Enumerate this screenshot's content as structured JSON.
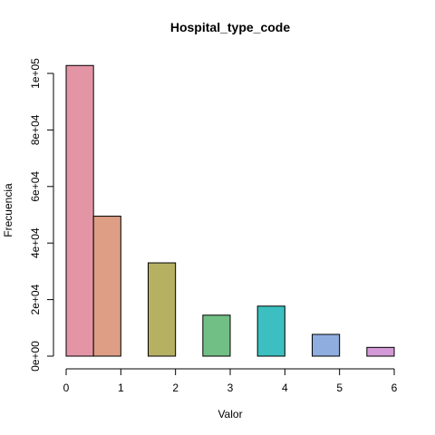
{
  "chart_data": {
    "type": "bar",
    "title": "Hospital_type_code",
    "xlabel": "Valor",
    "ylabel": "Frecuencia",
    "xlim": [
      0,
      6
    ],
    "ylim": [
      0,
      100000
    ],
    "x_ticks": [
      0,
      1,
      2,
      3,
      4,
      5,
      6
    ],
    "x_tick_labels": [
      "0",
      "1",
      "2",
      "3",
      "4",
      "5",
      "6"
    ],
    "y_ticks": [
      0,
      20000,
      40000,
      60000,
      80000,
      100000
    ],
    "y_tick_labels": [
      "0e+00",
      "2e+04",
      "4e+04",
      "6e+04",
      "8e+04",
      "1e+05"
    ],
    "grid": false,
    "bars": [
      {
        "x0": 0.0,
        "x1": 0.5,
        "value": 102800,
        "color": "#e495a5"
      },
      {
        "x0": 0.5,
        "x1": 1.0,
        "value": 49500,
        "color": "#dd9e85"
      },
      {
        "x0": 1.5,
        "x1": 2.0,
        "value": 33000,
        "color": "#b6b063"
      },
      {
        "x0": 2.5,
        "x1": 3.0,
        "value": 14500,
        "color": "#72bf85"
      },
      {
        "x0": 3.5,
        "x1": 4.0,
        "value": 17700,
        "color": "#3bbfc0"
      },
      {
        "x0": 4.5,
        "x1": 5.0,
        "value": 7700,
        "color": "#8fadde"
      },
      {
        "x0": 5.5,
        "x1": 6.0,
        "value": 3100,
        "color": "#d39ad7"
      }
    ]
  }
}
